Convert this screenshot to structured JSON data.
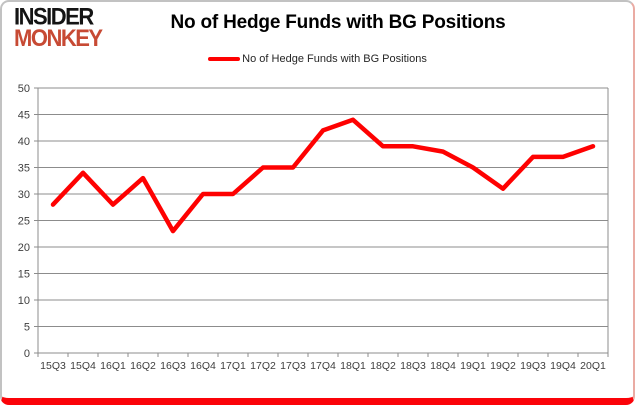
{
  "logo": {
    "line1": "INSIDER",
    "line2": "MONKEY"
  },
  "header": {
    "title": "No of Hedge Funds with BG Positions"
  },
  "legend": {
    "label": "No of Hedge Funds with BG Positions"
  },
  "colors": {
    "series_line": "#fe0101",
    "logo_red": "#c74a34",
    "gridline": "#8c8c8c",
    "axis": "#8c8c8c",
    "axis_text": "#3f3f3f",
    "card_bottom_border": "#fb0309"
  },
  "chart_data": {
    "type": "line",
    "title": "No of Hedge Funds with BG Positions",
    "categories": [
      "15Q3",
      "15Q4",
      "16Q1",
      "16Q2",
      "16Q3",
      "16Q4",
      "17Q1",
      "17Q2",
      "17Q3",
      "17Q4",
      "18Q1",
      "18Q2",
      "18Q3",
      "18Q4",
      "19Q1",
      "19Q2",
      "19Q3",
      "19Q4",
      "20Q1"
    ],
    "series": [
      {
        "name": "No of Hedge Funds with BG Positions",
        "color": "#fe0101",
        "values": [
          28,
          34,
          28,
          33,
          23,
          30,
          30,
          35,
          35,
          42,
          44,
          39,
          39,
          38,
          35,
          31,
          37,
          37,
          39
        ]
      }
    ],
    "xlabel": "",
    "ylabel": "",
    "ylim": [
      0,
      50
    ],
    "ytick_step": 5,
    "grid": "horizontal",
    "legend_position": "top-center"
  }
}
